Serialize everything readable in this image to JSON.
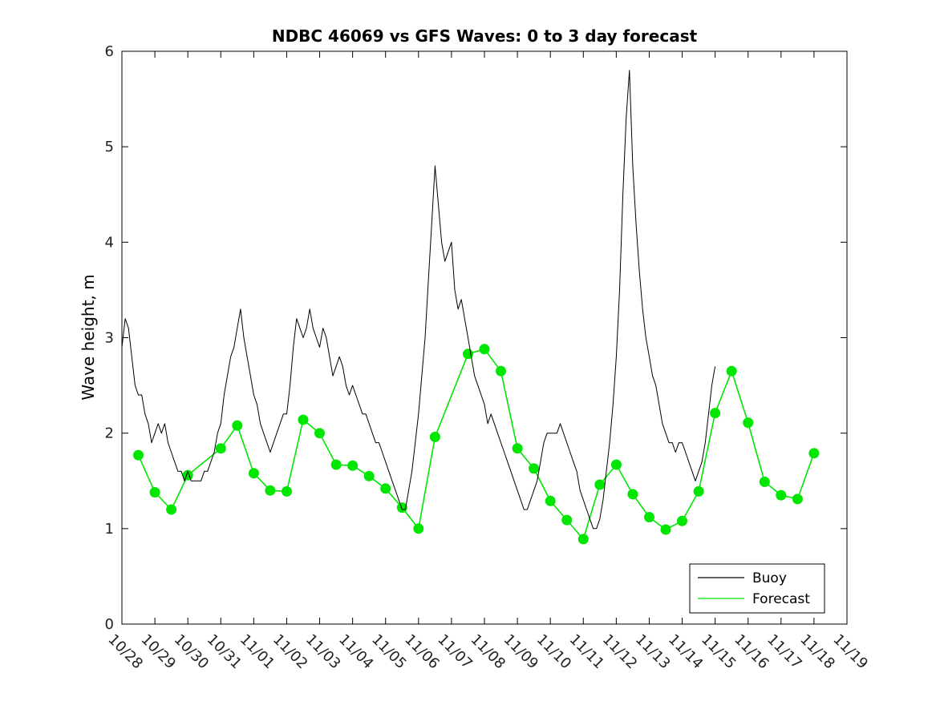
{
  "chart_data": {
    "type": "line",
    "title": "NDBC 46069 vs GFS Waves: 0 to 3 day forecast",
    "xlabel": "",
    "ylabel": "Wave height, m",
    "xlim": [
      0,
      22
    ],
    "ylim": [
      0,
      6
    ],
    "yticks": [
      0,
      1,
      2,
      3,
      4,
      5,
      6
    ],
    "xtick_labels": [
      "10/28",
      "10/29",
      "10/30",
      "10/31",
      "11/01",
      "11/02",
      "11/03",
      "11/04",
      "11/05",
      "11/06",
      "11/07",
      "11/08",
      "11/09",
      "11/10",
      "11/11",
      "11/12",
      "11/13",
      "11/14",
      "11/15",
      "11/16",
      "11/17",
      "11/18",
      "11/19"
    ],
    "legend": {
      "position": "bottom-right",
      "entries": [
        {
          "label": "Buoy",
          "color": "#000000"
        },
        {
          "label": "Forecast",
          "color": "#00e600"
        }
      ]
    },
    "series": [
      {
        "name": "Buoy",
        "color": "#000000",
        "points": [
          [
            0,
            2.9
          ],
          [
            0.1,
            3.2
          ],
          [
            0.2,
            3.1
          ],
          [
            0.3,
            2.8
          ],
          [
            0.4,
            2.5
          ],
          [
            0.5,
            2.4
          ],
          [
            0.6,
            2.4
          ],
          [
            0.7,
            2.2
          ],
          [
            0.8,
            2.1
          ],
          [
            0.9,
            1.9
          ],
          [
            1.0,
            2.0
          ],
          [
            1.1,
            2.1
          ],
          [
            1.2,
            2.0
          ],
          [
            1.3,
            2.1
          ],
          [
            1.4,
            1.9
          ],
          [
            1.5,
            1.8
          ],
          [
            1.6,
            1.7
          ],
          [
            1.7,
            1.6
          ],
          [
            1.8,
            1.6
          ],
          [
            1.9,
            1.5
          ],
          [
            2.0,
            1.6
          ],
          [
            2.1,
            1.5
          ],
          [
            2.2,
            1.5
          ],
          [
            2.3,
            1.5
          ],
          [
            2.4,
            1.5
          ],
          [
            2.5,
            1.6
          ],
          [
            2.6,
            1.6
          ],
          [
            2.7,
            1.7
          ],
          [
            2.8,
            1.8
          ],
          [
            2.9,
            2.0
          ],
          [
            3.0,
            2.1
          ],
          [
            3.1,
            2.4
          ],
          [
            3.2,
            2.6
          ],
          [
            3.3,
            2.8
          ],
          [
            3.4,
            2.9
          ],
          [
            3.5,
            3.1
          ],
          [
            3.6,
            3.3
          ],
          [
            3.7,
            3.0
          ],
          [
            3.8,
            2.8
          ],
          [
            3.9,
            2.6
          ],
          [
            4.0,
            2.4
          ],
          [
            4.1,
            2.3
          ],
          [
            4.2,
            2.1
          ],
          [
            4.3,
            2.0
          ],
          [
            4.4,
            1.9
          ],
          [
            4.5,
            1.8
          ],
          [
            4.6,
            1.9
          ],
          [
            4.7,
            2.0
          ],
          [
            4.8,
            2.1
          ],
          [
            4.9,
            2.2
          ],
          [
            5.0,
            2.2
          ],
          [
            5.1,
            2.5
          ],
          [
            5.2,
            2.9
          ],
          [
            5.3,
            3.2
          ],
          [
            5.4,
            3.1
          ],
          [
            5.5,
            3.0
          ],
          [
            5.6,
            3.1
          ],
          [
            5.7,
            3.3
          ],
          [
            5.8,
            3.1
          ],
          [
            5.9,
            3.0
          ],
          [
            6.0,
            2.9
          ],
          [
            6.1,
            3.1
          ],
          [
            6.2,
            3.0
          ],
          [
            6.3,
            2.8
          ],
          [
            6.4,
            2.6
          ],
          [
            6.5,
            2.7
          ],
          [
            6.6,
            2.8
          ],
          [
            6.7,
            2.7
          ],
          [
            6.8,
            2.5
          ],
          [
            6.9,
            2.4
          ],
          [
            7.0,
            2.5
          ],
          [
            7.1,
            2.4
          ],
          [
            7.2,
            2.3
          ],
          [
            7.3,
            2.2
          ],
          [
            7.4,
            2.2
          ],
          [
            7.5,
            2.1
          ],
          [
            7.6,
            2.0
          ],
          [
            7.7,
            1.9
          ],
          [
            7.8,
            1.9
          ],
          [
            7.9,
            1.8
          ],
          [
            8.0,
            1.7
          ],
          [
            8.1,
            1.6
          ],
          [
            8.2,
            1.5
          ],
          [
            8.3,
            1.4
          ],
          [
            8.4,
            1.3
          ],
          [
            8.5,
            1.2
          ],
          [
            8.6,
            1.2
          ],
          [
            8.7,
            1.4
          ],
          [
            8.8,
            1.6
          ],
          [
            8.9,
            1.9
          ],
          [
            9.0,
            2.2
          ],
          [
            9.1,
            2.6
          ],
          [
            9.2,
            3.0
          ],
          [
            9.3,
            3.6
          ],
          [
            9.4,
            4.2
          ],
          [
            9.5,
            4.8
          ],
          [
            9.6,
            4.4
          ],
          [
            9.7,
            4.0
          ],
          [
            9.8,
            3.8
          ],
          [
            9.9,
            3.9
          ],
          [
            10.0,
            4.0
          ],
          [
            10.1,
            3.5
          ],
          [
            10.2,
            3.3
          ],
          [
            10.3,
            3.4
          ],
          [
            10.4,
            3.2
          ],
          [
            10.5,
            3.0
          ],
          [
            10.6,
            2.8
          ],
          [
            10.7,
            2.6
          ],
          [
            10.8,
            2.5
          ],
          [
            10.9,
            2.4
          ],
          [
            11.0,
            2.3
          ],
          [
            11.1,
            2.1
          ],
          [
            11.2,
            2.2
          ],
          [
            11.3,
            2.1
          ],
          [
            11.4,
            2.0
          ],
          [
            11.5,
            1.9
          ],
          [
            11.6,
            1.8
          ],
          [
            11.7,
            1.7
          ],
          [
            11.8,
            1.6
          ],
          [
            11.9,
            1.5
          ],
          [
            12.0,
            1.4
          ],
          [
            12.1,
            1.3
          ],
          [
            12.2,
            1.2
          ],
          [
            12.3,
            1.2
          ],
          [
            12.4,
            1.3
          ],
          [
            12.5,
            1.4
          ],
          [
            12.6,
            1.5
          ],
          [
            12.7,
            1.7
          ],
          [
            12.8,
            1.9
          ],
          [
            12.9,
            2.0
          ],
          [
            13.0,
            2.0
          ],
          [
            13.1,
            2.0
          ],
          [
            13.2,
            2.0
          ],
          [
            13.3,
            2.1
          ],
          [
            13.4,
            2.0
          ],
          [
            13.5,
            1.9
          ],
          [
            13.6,
            1.8
          ],
          [
            13.7,
            1.7
          ],
          [
            13.8,
            1.6
          ],
          [
            13.9,
            1.4
          ],
          [
            14.0,
            1.3
          ],
          [
            14.1,
            1.2
          ],
          [
            14.2,
            1.1
          ],
          [
            14.3,
            1.0
          ],
          [
            14.4,
            1.0
          ],
          [
            14.5,
            1.1
          ],
          [
            14.6,
            1.3
          ],
          [
            14.7,
            1.6
          ],
          [
            14.8,
            1.9
          ],
          [
            14.9,
            2.3
          ],
          [
            15.0,
            2.8
          ],
          [
            15.1,
            3.5
          ],
          [
            15.2,
            4.5
          ],
          [
            15.3,
            5.3
          ],
          [
            15.4,
            5.8
          ],
          [
            15.5,
            4.8
          ],
          [
            15.6,
            4.2
          ],
          [
            15.7,
            3.7
          ],
          [
            15.8,
            3.3
          ],
          [
            15.9,
            3.0
          ],
          [
            16.0,
            2.8
          ],
          [
            16.1,
            2.6
          ],
          [
            16.2,
            2.5
          ],
          [
            16.3,
            2.3
          ],
          [
            16.4,
            2.1
          ],
          [
            16.5,
            2.0
          ],
          [
            16.6,
            1.9
          ],
          [
            16.7,
            1.9
          ],
          [
            16.8,
            1.8
          ],
          [
            16.9,
            1.9
          ],
          [
            17.0,
            1.9
          ],
          [
            17.1,
            1.8
          ],
          [
            17.2,
            1.7
          ],
          [
            17.3,
            1.6
          ],
          [
            17.4,
            1.5
          ],
          [
            17.5,
            1.6
          ],
          [
            17.6,
            1.7
          ],
          [
            17.7,
            1.9
          ],
          [
            17.8,
            2.2
          ],
          [
            17.9,
            2.5
          ],
          [
            18.0,
            2.7
          ]
        ]
      },
      {
        "name": "Forecast",
        "color": "#00e600",
        "points": [
          [
            0.5,
            1.77
          ],
          [
            1.0,
            1.38
          ],
          [
            1.5,
            1.2
          ],
          [
            2.0,
            1.56
          ],
          [
            3.0,
            1.84
          ],
          [
            3.5,
            2.08
          ],
          [
            4.0,
            1.58
          ],
          [
            4.5,
            1.4
          ],
          [
            5.0,
            1.39
          ],
          [
            5.5,
            2.14
          ],
          [
            6.0,
            2.0
          ],
          [
            6.5,
            1.67
          ],
          [
            7.0,
            1.66
          ],
          [
            7.5,
            1.55
          ],
          [
            8.0,
            1.42
          ],
          [
            8.5,
            1.22
          ],
          [
            9.0,
            1.0
          ],
          [
            9.5,
            1.96
          ],
          [
            10.5,
            2.83
          ],
          [
            11.0,
            2.88
          ],
          [
            11.5,
            2.65
          ],
          [
            12.0,
            1.84
          ],
          [
            12.5,
            1.63
          ],
          [
            13.0,
            1.29
          ],
          [
            13.5,
            1.09
          ],
          [
            14.0,
            0.89
          ],
          [
            14.5,
            1.46
          ],
          [
            15.0,
            1.67
          ],
          [
            15.5,
            1.36
          ],
          [
            16.0,
            1.12
          ],
          [
            16.5,
            0.99
          ],
          [
            17.0,
            1.08
          ],
          [
            17.5,
            1.39
          ],
          [
            18.0,
            2.21
          ],
          [
            18.5,
            2.65
          ],
          [
            19.0,
            2.11
          ],
          [
            19.5,
            1.49
          ],
          [
            20.0,
            1.35
          ],
          [
            20.5,
            1.31
          ],
          [
            21.0,
            1.79
          ]
        ]
      }
    ]
  }
}
